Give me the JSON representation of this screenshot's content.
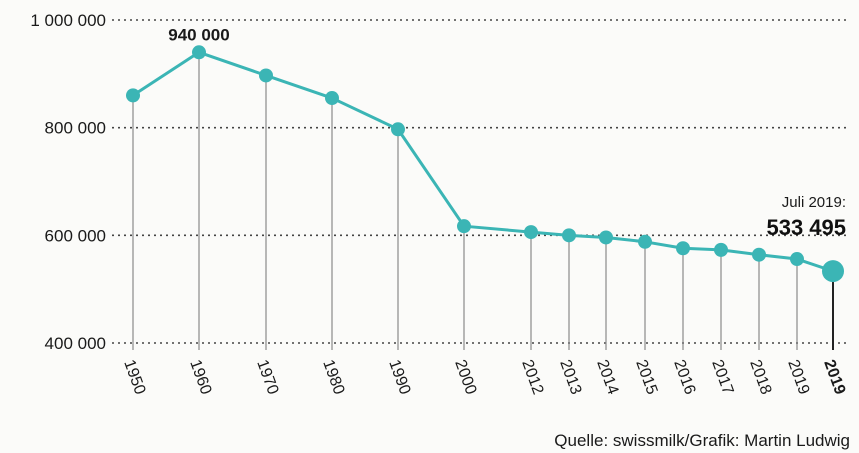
{
  "chart_data": {
    "type": "line",
    "categories": [
      "1950",
      "1960",
      "1970",
      "1980",
      "1990",
      "2000",
      "2012",
      "2013",
      "2014",
      "2015",
      "2016",
      "2017",
      "2018",
      "2019",
      "2019"
    ],
    "values": [
      860000,
      940000,
      897000,
      855000,
      797000,
      617000,
      606000,
      600000,
      596000,
      588000,
      576000,
      573000,
      564000,
      556000,
      533495
    ],
    "ylim": [
      400000,
      1000000
    ],
    "yticks": [
      400000,
      600000,
      800000,
      1000000
    ],
    "ytick_labels": [
      "400 000",
      "600 000",
      "800 000",
      "1 000 000"
    ],
    "grid": "horizontal dotted",
    "series_color": "#3bb5b5",
    "annotations": {
      "peak_label": "940 000",
      "last_caption": "Juli 2019:",
      "last_value_label": "533 495"
    },
    "source": "Quelle: swissmilk/Grafik: Martin Ludwig"
  }
}
